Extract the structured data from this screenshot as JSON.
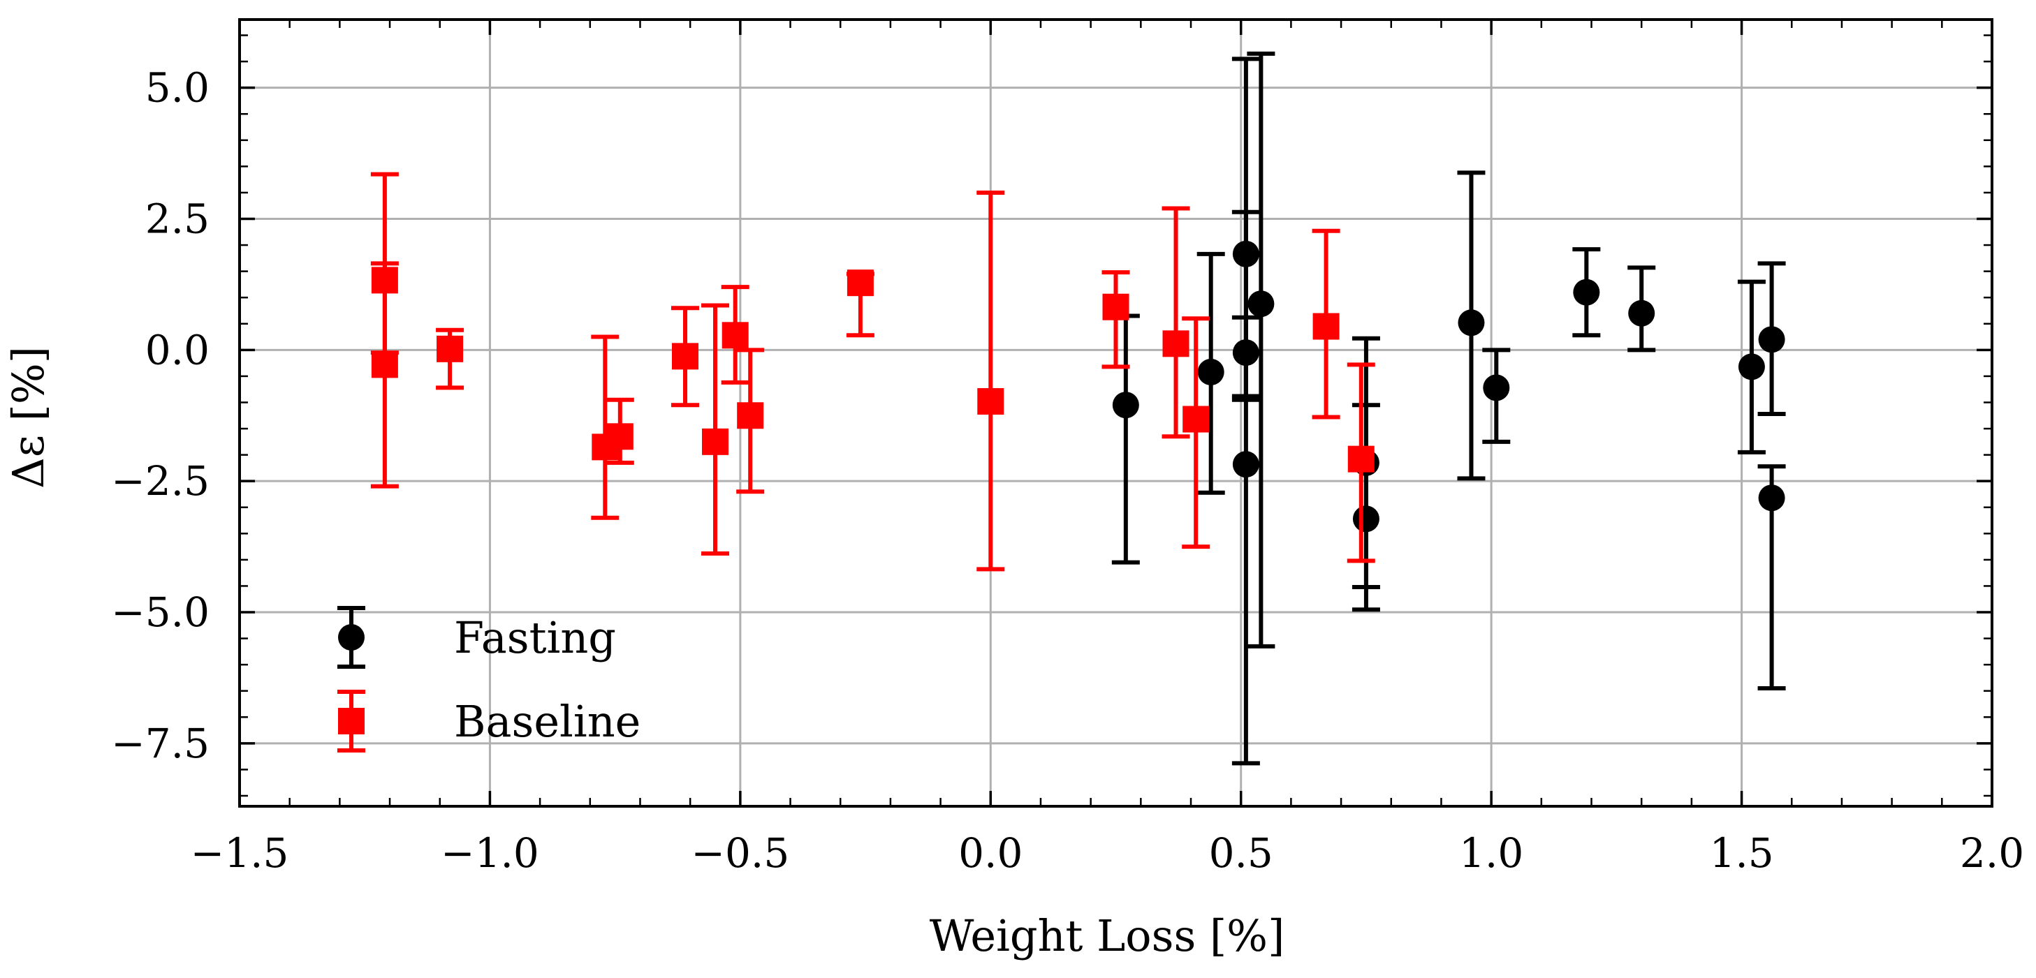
{
  "chart_data": {
    "type": "scatter",
    "title": "",
    "xlabel": "Weight Loss [%]",
    "ylabel": "Δε [%]",
    "xlim": [
      -1.5,
      2.0
    ],
    "ylim": [
      -8.7,
      6.3
    ],
    "grid": true,
    "legend_position": "lower-left",
    "x_ticks": [
      -1.5,
      -1.0,
      -0.5,
      0.0,
      0.5,
      1.0,
      1.5,
      2.0
    ],
    "x_tick_labels": [
      "−1.5",
      "−1.0",
      "−0.5",
      "0.0",
      "0.5",
      "1.0",
      "1.5",
      "2.0"
    ],
    "y_ticks": [
      5.0,
      2.5,
      0.0,
      -2.5,
      -5.0,
      -7.5
    ],
    "y_tick_labels": [
      "5.0",
      "2.5",
      "0.0",
      "−2.5",
      "−5.0",
      "−7.5"
    ],
    "series": [
      {
        "name": "Fasting",
        "color": "#000000",
        "marker": "circle",
        "points": [
          {
            "x": 0.27,
            "y": -1.05,
            "low": -4.05,
            "high": 0.65
          },
          {
            "x": 0.44,
            "y": -0.42,
            "low": -2.72,
            "high": 1.83
          },
          {
            "x": 0.51,
            "y": 1.83,
            "low": -0.88,
            "high": 2.63
          },
          {
            "x": 0.51,
            "y": -0.05,
            "low": -0.95,
            "high": 0.62
          },
          {
            "x": 0.51,
            "y": -2.18,
            "low": -7.88,
            "high": 5.55
          },
          {
            "x": 0.54,
            "y": 0.88,
            "low": -5.65,
            "high": 5.65
          },
          {
            "x": 0.75,
            "y": -2.15,
            "low": -4.52,
            "high": 0.22
          },
          {
            "x": 0.75,
            "y": -3.22,
            "low": -4.95,
            "high": -1.05
          },
          {
            "x": 0.96,
            "y": 0.52,
            "low": -2.45,
            "high": 3.38
          },
          {
            "x": 1.01,
            "y": -0.72,
            "low": -1.75,
            "high": 0.0
          },
          {
            "x": 1.19,
            "y": 1.1,
            "low": 0.28,
            "high": 1.92
          },
          {
            "x": 1.3,
            "y": 0.7,
            "low": 0.0,
            "high": 1.57
          },
          {
            "x": 1.52,
            "y": -0.32,
            "low": -1.95,
            "high": 1.3
          },
          {
            "x": 1.56,
            "y": 0.2,
            "low": -1.22,
            "high": 1.65
          },
          {
            "x": 1.56,
            "y": -2.82,
            "low": -6.45,
            "high": -2.22
          }
        ]
      },
      {
        "name": "Baseline",
        "color": "#ff0000",
        "marker": "square",
        "points": [
          {
            "x": -1.21,
            "y": 1.33,
            "low": -0.05,
            "high": 3.35
          },
          {
            "x": -1.21,
            "y": -0.28,
            "low": -2.6,
            "high": 1.65
          },
          {
            "x": -1.08,
            "y": 0.02,
            "low": -0.72,
            "high": 0.38
          },
          {
            "x": -0.77,
            "y": -1.85,
            "low": -3.2,
            "high": 0.25
          },
          {
            "x": -0.74,
            "y": -1.65,
            "low": -2.15,
            "high": -0.95
          },
          {
            "x": -0.61,
            "y": -0.12,
            "low": -1.05,
            "high": 0.8
          },
          {
            "x": -0.55,
            "y": -1.75,
            "low": -3.88,
            "high": 0.85
          },
          {
            "x": -0.51,
            "y": 0.28,
            "low": -0.62,
            "high": 1.2
          },
          {
            "x": -0.48,
            "y": -1.25,
            "low": -2.7,
            "high": 0.0
          },
          {
            "x": -0.26,
            "y": 1.28,
            "low": 0.28,
            "high": 1.45
          },
          {
            "x": 0.0,
            "y": -0.98,
            "low": -4.18,
            "high": 3.0
          },
          {
            "x": 0.25,
            "y": 0.82,
            "low": -0.32,
            "high": 1.48
          },
          {
            "x": 0.37,
            "y": 0.12,
            "low": -1.65,
            "high": 2.7
          },
          {
            "x": 0.41,
            "y": -1.32,
            "low": -3.75,
            "high": 0.6
          },
          {
            "x": 0.67,
            "y": 0.45,
            "low": -1.28,
            "high": 2.27
          },
          {
            "x": 0.74,
            "y": -2.08,
            "low": -4.02,
            "high": -0.28
          }
        ]
      }
    ]
  }
}
